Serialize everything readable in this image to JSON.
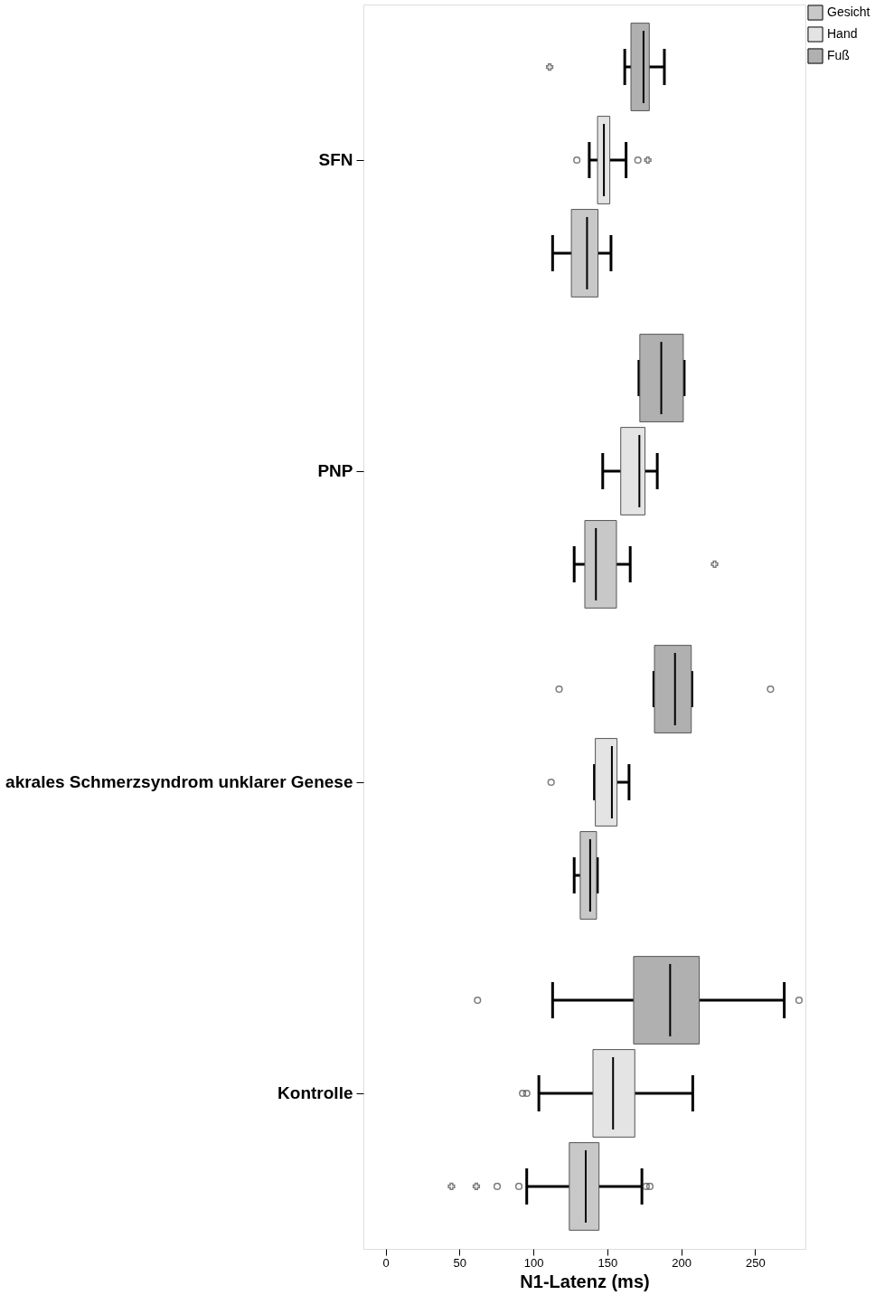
{
  "chart_data": {
    "type": "box",
    "orientation": "horizontal",
    "xlabel": "N1-Latenz (ms)",
    "categories": [
      "SFN",
      "PNP",
      "akrales Schmerzsyndrom unklarer Genese",
      "Kontrolle"
    ],
    "xlim": [
      -15,
      284
    ],
    "xticks": [
      0,
      50,
      100,
      150,
      200,
      250
    ],
    "grid": false,
    "legend": "top right",
    "series": [
      {
        "name": "Gesicht",
        "color": "#c8c8c8",
        "boxes": [
          {
            "low": 113,
            "q1": 125.7,
            "median": 136.3,
            "q3": 143.7,
            "high": 152.5
          },
          {
            "low": 127.6,
            "q1": 134.8,
            "median": 142.3,
            "q3": 156.2,
            "high": 165.5,
            "outliers": [
              222.6
            ]
          },
          {
            "low": 127.6,
            "q1": 131.7,
            "median": 138.4,
            "q3": 142.7,
            "high": 143.3
          },
          {
            "low": 95.5,
            "q1": 124.3,
            "median": 135.4,
            "q3": 144.4,
            "high": 173.4,
            "outliers": [
              44.6,
              61.4,
              75.5,
              90.2,
              176.3,
              178.8
            ]
          }
        ]
      },
      {
        "name": "Hand",
        "color": "#e4e4e4",
        "boxes": [
          {
            "low": 137.8,
            "q1": 143.4,
            "median": 147.7,
            "q3": 151.7,
            "high": 162.7,
            "outliers": [
              129.4,
              170.7,
              177.4
            ]
          },
          {
            "low": 146.9,
            "q1": 159.1,
            "median": 171.7,
            "q3": 175.5,
            "high": 183.8
          },
          {
            "low": 141.3,
            "q1": 141.9,
            "median": 153.1,
            "q3": 156.6,
            "high": 164.7,
            "outliers": [
              112
            ]
          },
          {
            "low": 103.7,
            "q1": 140.3,
            "median": 153.9,
            "q3": 168.6,
            "high": 207.8,
            "outliers": [
              92.7,
              95.5
            ]
          }
        ]
      },
      {
        "name": "Fuß",
        "color": "#b0b0b0",
        "boxes": [
          {
            "low": 161.8,
            "q1": 166,
            "median": 174.5,
            "q3": 178.4,
            "high": 188.6,
            "outliers": [
              111
            ]
          },
          {
            "low": 171.4,
            "q1": 172,
            "median": 186.5,
            "q3": 201.4,
            "high": 202
          },
          {
            "low": 181.5,
            "q1": 181.9,
            "median": 195.8,
            "q3": 206.8,
            "high": 207.2,
            "outliers": [
              117.4,
              260.4
            ]
          },
          {
            "low": 113,
            "q1": 167.8,
            "median": 192.5,
            "q3": 212.2,
            "high": 269.7,
            "outliers": [
              62.2,
              279.7
            ]
          }
        ]
      }
    ]
  }
}
